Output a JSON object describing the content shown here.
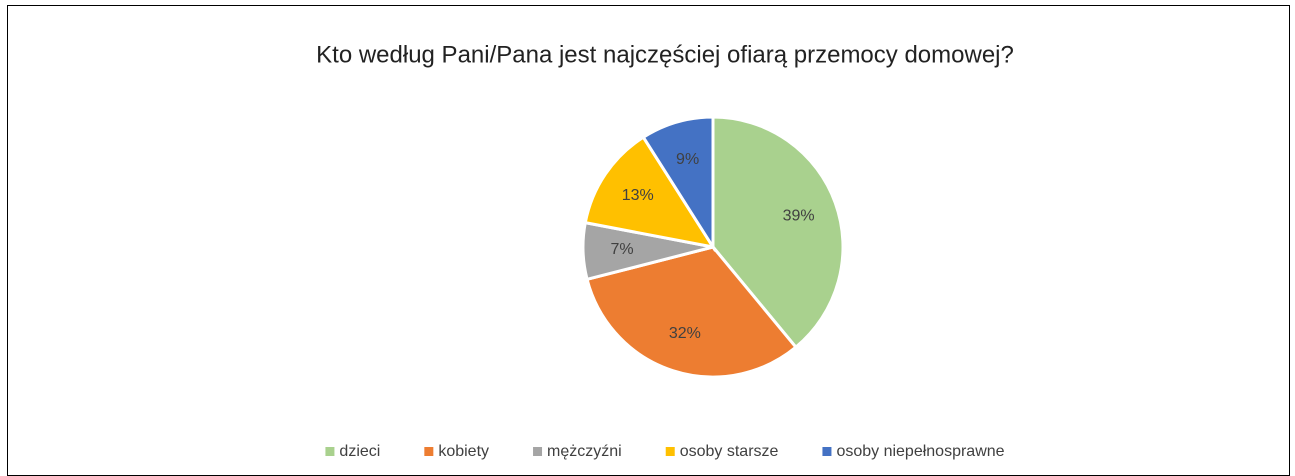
{
  "chart_data": {
    "type": "pie",
    "title": "Kto według Pani/Pana jest najczęściej ofiarą przemocy domowej?",
    "categories": [
      "dzieci",
      "kobiety",
      "mężczyźni",
      "osoby starsze",
      "osoby niepełnosprawne"
    ],
    "values": [
      39,
      32,
      7,
      13,
      9
    ],
    "value_labels": [
      "39%",
      "32%",
      "7%",
      "13%",
      "9%"
    ],
    "colors": [
      "#a9d18e",
      "#ed7d31",
      "#a5a5a5",
      "#ffc000",
      "#4472c4"
    ],
    "legend": "bottom"
  }
}
